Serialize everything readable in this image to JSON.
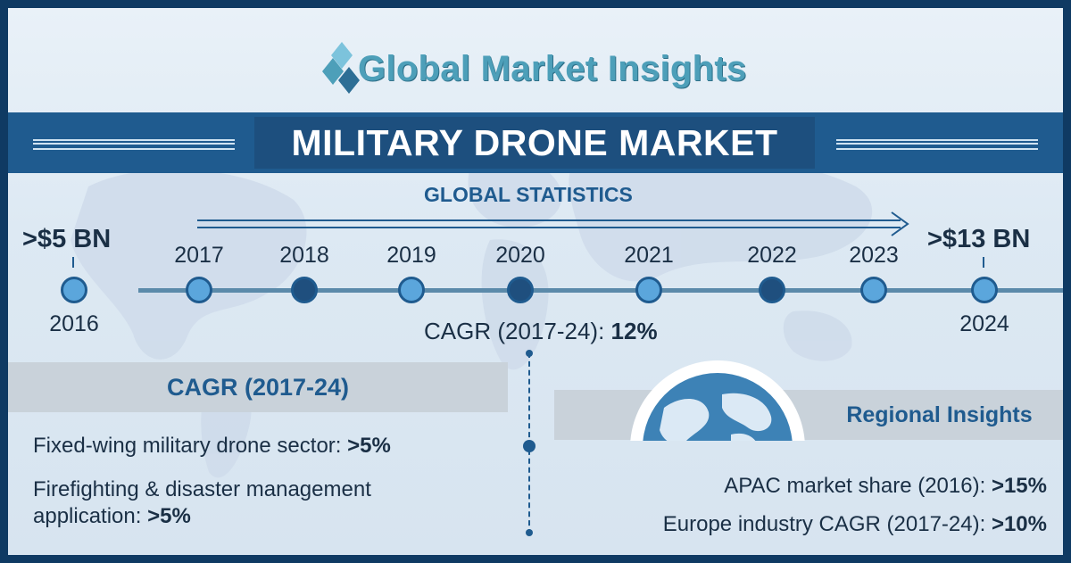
{
  "logo": {
    "text": "Global Market Insights"
  },
  "title": "MILITARY DRONE MARKET",
  "subtitle": "GLOBAL STATISTICS",
  "timeline": {
    "start_value": ">$5 BN",
    "end_value": ">$13 BN",
    "years": [
      {
        "label": "2016",
        "style": "light"
      },
      {
        "label": "2017",
        "style": "light"
      },
      {
        "label": "2018",
        "style": "dark"
      },
      {
        "label": "2019",
        "style": "light"
      },
      {
        "label": "2020",
        "style": "dark"
      },
      {
        "label": "2021",
        "style": "light"
      },
      {
        "label": "2022",
        "style": "dark"
      },
      {
        "label": "2023",
        "style": "light"
      },
      {
        "label": "2024",
        "style": "light"
      }
    ]
  },
  "cagr_overall": {
    "label": "CAGR (2017-24):",
    "value": "12%"
  },
  "left_section": {
    "heading": "CAGR (2017-24)",
    "items": [
      {
        "text": "Fixed-wing military drone sector:",
        "value": ">5%"
      },
      {
        "text_line1": "Firefighting & disaster management",
        "text_line2": "application:",
        "value": ">5%"
      }
    ]
  },
  "right_section": {
    "heading": "Regional Insights",
    "items": [
      {
        "text": "APAC market share (2016):",
        "value": ">15%"
      },
      {
        "text": "Europe industry CAGR (2017-24):",
        "value": ">10%"
      }
    ]
  },
  "colors": {
    "navy": "#1f5b8f",
    "band": "#1f5b8f",
    "node_light": "#5ba6dc",
    "node_dark": "#1f4f7e",
    "text": "#1a2f45",
    "logo": "#4d9fb9",
    "panel": "#c9d2da"
  }
}
